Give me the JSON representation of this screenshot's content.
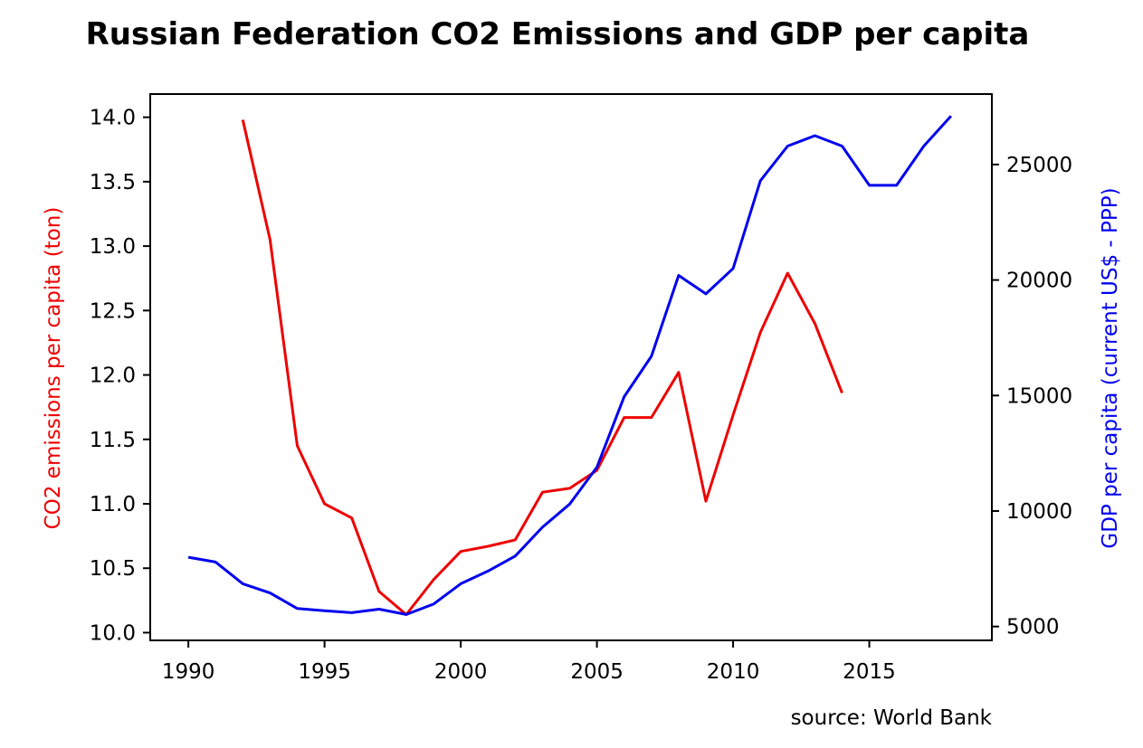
{
  "chart_data": {
    "type": "line",
    "title": "Russian Federation CO2 Emissions and GDP per capita",
    "xlabel": "",
    "ylabel": "CO2 emissions per capita (ton)",
    "y2label": "GDP per capita (current US$ - PPP)",
    "source": "source: World Bank",
    "xlim": [
      1988.6,
      2019.5
    ],
    "ylim": [
      9.94,
      14.18
    ],
    "y2lim": [
      4400,
      28050
    ],
    "x_ticks": [
      1990,
      1995,
      2000,
      2005,
      2010,
      2015
    ],
    "x_tick_labels": [
      "1990",
      "1995",
      "2000",
      "2005",
      "2010",
      "2015"
    ],
    "y_ticks": [
      10.0,
      10.5,
      11.0,
      11.5,
      12.0,
      12.5,
      13.0,
      13.5,
      14.0
    ],
    "y_tick_labels": [
      "10.0",
      "10.5",
      "11.0",
      "11.5",
      "12.0",
      "12.5",
      "13.0",
      "13.5",
      "14.0"
    ],
    "y2_ticks": [
      5000,
      10000,
      15000,
      20000,
      25000
    ],
    "y2_tick_labels": [
      "5000",
      "10000",
      "15000",
      "20000",
      "25000"
    ],
    "grid": false,
    "series": [
      {
        "axis": "left",
        "color": "#ee0000",
        "x": [
          1992,
          1993,
          1994,
          1995,
          1996,
          1997,
          1998,
          1999,
          2000,
          2001,
          2002,
          2003,
          2004,
          2005,
          2006,
          2007,
          2008,
          2009,
          2010,
          2011,
          2012,
          2013,
          2014
        ],
        "y": [
          13.98,
          13.05,
          11.45,
          11.0,
          10.89,
          10.32,
          10.14,
          10.41,
          10.63,
          10.67,
          10.72,
          11.09,
          11.12,
          11.26,
          11.67,
          11.67,
          12.02,
          11.02,
          11.69,
          12.33,
          12.79,
          12.4,
          11.86
        ]
      },
      {
        "axis": "right",
        "color": "#0000ee",
        "x": [
          1990,
          1991,
          1992,
          1993,
          1994,
          1995,
          1996,
          1997,
          1998,
          1999,
          2000,
          2001,
          2002,
          2003,
          2004,
          2005,
          2006,
          2007,
          2008,
          2009,
          2010,
          2011,
          2012,
          2013,
          2014,
          2015,
          2016,
          2017,
          2018
        ],
        "y": [
          8000,
          7790,
          6850,
          6450,
          5780,
          5680,
          5600,
          5750,
          5520,
          5970,
          6850,
          7400,
          8050,
          9300,
          10300,
          11900,
          14950,
          16700,
          20200,
          19400,
          20500,
          24300,
          25800,
          26250,
          25800,
          24100,
          24100,
          25800,
          27100
        ]
      }
    ]
  }
}
